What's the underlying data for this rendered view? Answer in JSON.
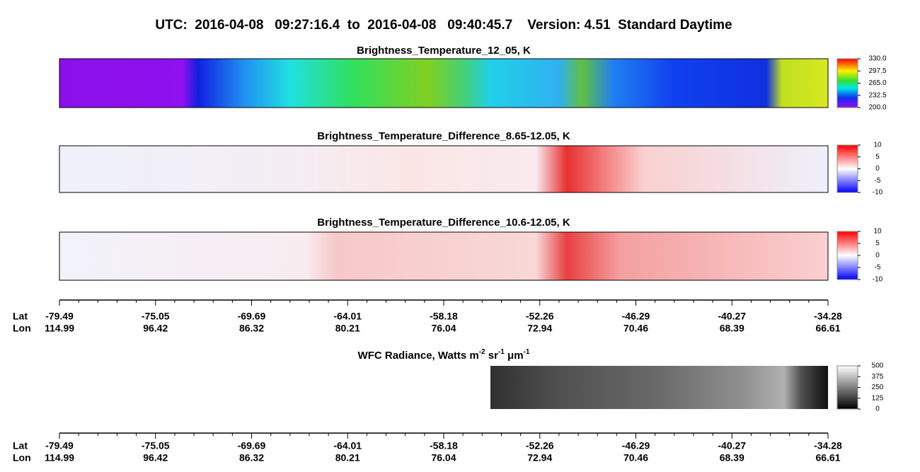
{
  "header": {
    "title": "UTC:  2016-04-08   09:27:16.4  to  2016-04-08   09:40:45.7    Version: 4.51  Standard Daytime"
  },
  "panels": [
    {
      "title": "Brightness_Temperature_12_05, K",
      "colorbar_ticks": [
        "330.0",
        "297.5",
        "265.0",
        "232.5",
        "200.0"
      ]
    },
    {
      "title": "Brightness_Temperature_Difference_8.65-12.05, K",
      "colorbar_ticks": [
        "10",
        "5",
        "0",
        "-5",
        "-10"
      ]
    },
    {
      "title": "Brightness_Temperature_Difference_10.6-12.05, K",
      "colorbar_ticks": [
        "10",
        "5",
        "0",
        "-5",
        "-10"
      ]
    },
    {
      "title_parts": [
        "WFC Radiance, Watts m",
        "-2",
        " sr",
        "-1",
        " μm",
        "-1"
      ],
      "colorbar_ticks": [
        "500",
        "375",
        "250",
        "125",
        "0"
      ]
    }
  ],
  "axis": {
    "lat_label": "Lat",
    "lon_label": "Lon",
    "lat": [
      "-79.49",
      "-75.05",
      "-69.69",
      "-64.01",
      "-58.18",
      "-52.26",
      "-46.29",
      "-40.27",
      "-34.28"
    ],
    "lon": [
      "114.99",
      "96.42",
      "86.32",
      "80.21",
      "76.04",
      "72.94",
      "70.46",
      "68.39",
      "66.61"
    ]
  }
}
